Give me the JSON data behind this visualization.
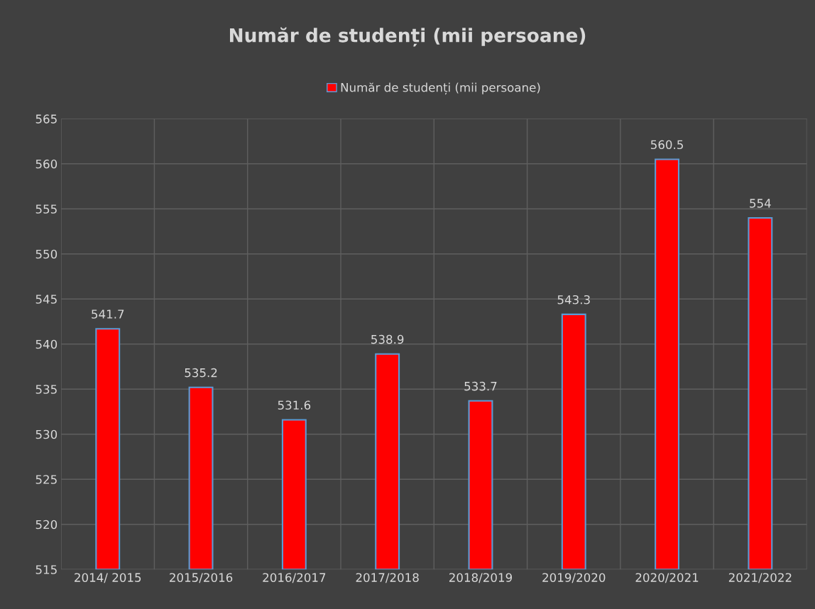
{
  "chart_data": {
    "type": "bar",
    "title": "Număr de studenți (mii persoane)",
    "categories": [
      "2014/ 2015",
      "2015/2016",
      "2016/2017",
      "2017/2018",
      "2018/2019",
      "2019/2020",
      "2020/2021",
      "2021/2022"
    ],
    "series": [
      {
        "name": "Număr de studenți (mii persoane)",
        "color": "#ff0000",
        "values": [
          541.7,
          535.2,
          531.6,
          538.9,
          533.7,
          543.3,
          560.5,
          554
        ]
      }
    ],
    "ylim": [
      515,
      565
    ],
    "yticks": [
      515,
      520,
      525,
      530,
      535,
      540,
      545,
      550,
      555,
      560,
      565
    ],
    "grid": true,
    "legend": "top",
    "data_labels": true
  }
}
